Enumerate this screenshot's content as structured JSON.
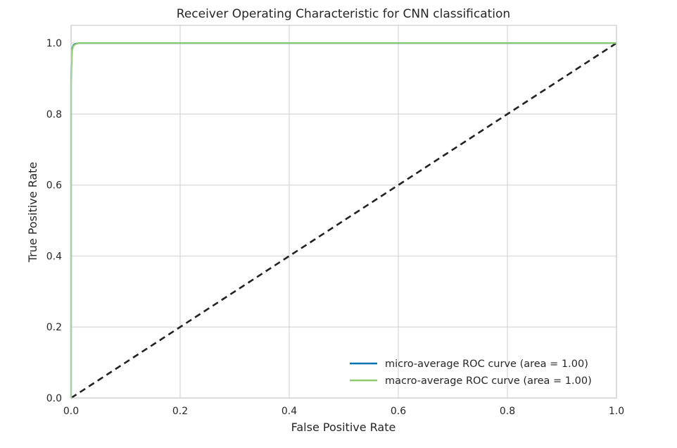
{
  "chart_data": {
    "type": "line",
    "title": "Receiver Operating Characteristic for CNN classification",
    "xlabel": "False Positive Rate",
    "ylabel": "True Positive Rate",
    "xlim": [
      0.0,
      1.0
    ],
    "ylim": [
      0.0,
      1.05
    ],
    "x_ticks": [
      "0.0",
      "0.2",
      "0.4",
      "0.6",
      "0.8",
      "1.0"
    ],
    "y_ticks": [
      "0.0",
      "0.2",
      "0.4",
      "0.6",
      "0.8",
      "1.0"
    ],
    "grid": true,
    "legend_position": "lower-right",
    "series": [
      {
        "name": "micro-average ROC curve (area = 1.00)",
        "color": "#0072B2",
        "style": "solid",
        "x": [
          0.0,
          0.0,
          0.001,
          0.002,
          0.004,
          0.008,
          0.015,
          0.03,
          1.0
        ],
        "y": [
          0.0,
          0.9,
          0.96,
          0.985,
          0.994,
          0.998,
          1.0,
          1.0,
          1.0
        ]
      },
      {
        "name": "macro-average ROC curve (area = 1.00)",
        "color": "#8ECB6C",
        "style": "solid",
        "x": [
          0.0,
          0.0,
          0.001,
          0.002,
          0.004,
          0.008,
          0.015,
          0.03,
          1.0
        ],
        "y": [
          0.0,
          0.88,
          0.95,
          0.98,
          0.992,
          0.997,
          1.0,
          1.0,
          1.0
        ]
      },
      {
        "name": "",
        "color": "#222222",
        "style": "dashed",
        "x": [
          0.0,
          1.0
        ],
        "y": [
          0.0,
          1.0
        ]
      }
    ]
  }
}
